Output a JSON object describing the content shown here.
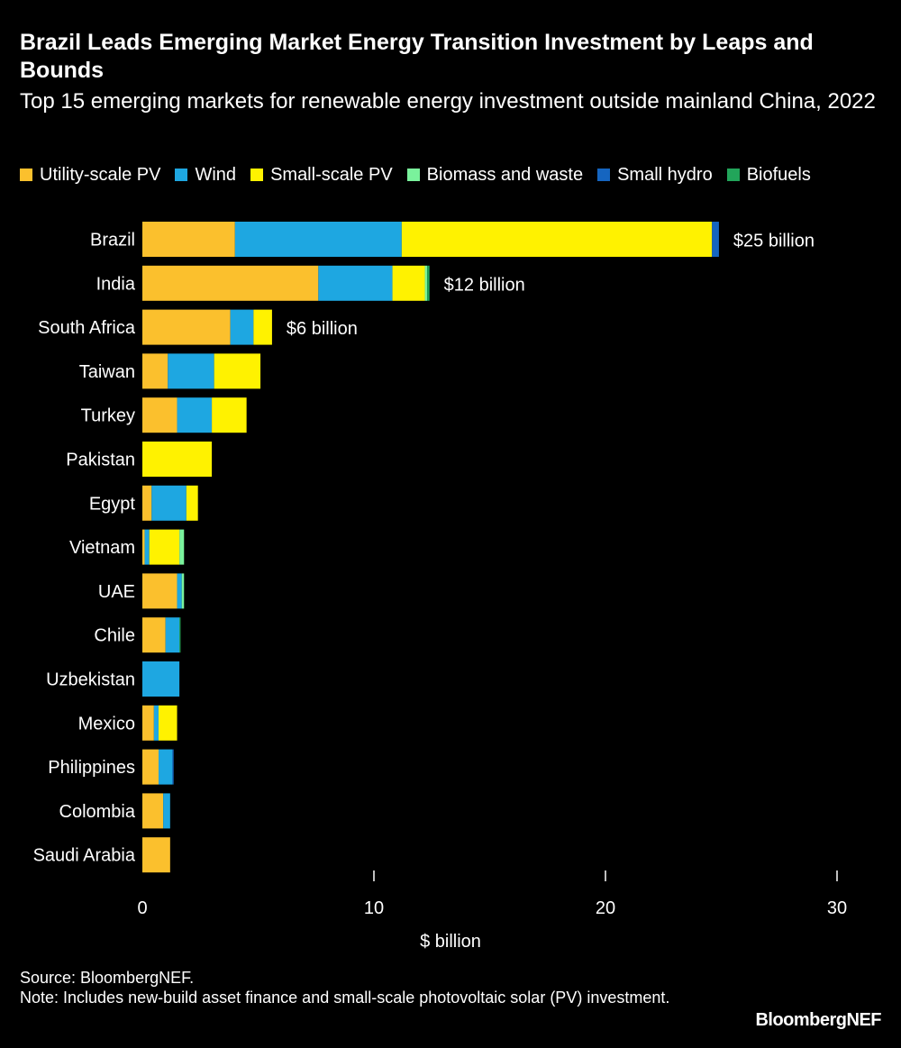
{
  "header": {
    "title": "Brazil Leads Emerging Market Energy Transition Investment by Leaps and Bounds",
    "subtitle": "Top 15 emerging markets for renewable energy investment outside mainland China, 2022"
  },
  "legend": [
    {
      "name": "Utility-scale PV",
      "color": "#fbc02d"
    },
    {
      "name": "Wind",
      "color": "#1ea7e1"
    },
    {
      "name": "Small-scale PV",
      "color": "#fff200"
    },
    {
      "name": "Biomass and waste",
      "color": "#7af29c"
    },
    {
      "name": "Small hydro",
      "color": "#1565c0"
    },
    {
      "name": "Biofuels",
      "color": "#22a55a"
    }
  ],
  "chart_data": {
    "type": "bar",
    "orientation": "horizontal",
    "stacked": true,
    "title": "Brazil Leads Emerging Market Energy Transition Investment by Leaps and Bounds",
    "subtitle": "Top 15 emerging markets for renewable energy investment outside mainland China, 2022",
    "xlabel": "$ billion",
    "ylabel": "",
    "xlim": [
      0,
      30
    ],
    "xticks": [
      0,
      10,
      20,
      30
    ],
    "grid": false,
    "legend_position": "top",
    "categories": [
      "Brazil",
      "India",
      "South Africa",
      "Taiwan",
      "Turkey",
      "Pakistan",
      "Egypt",
      "Vietnam",
      "UAE",
      "Chile",
      "Uzbekistan",
      "Mexico",
      "Philippines",
      "Colombia",
      "Saudi Arabia"
    ],
    "series": [
      {
        "name": "Utility-scale PV",
        "color": "#fbc02d",
        "values": [
          4.0,
          7.6,
          3.8,
          1.1,
          1.5,
          0.0,
          0.4,
          0.1,
          1.5,
          1.0,
          0.0,
          0.5,
          0.7,
          0.9,
          1.2
        ]
      },
      {
        "name": "Wind",
        "color": "#1ea7e1",
        "values": [
          7.2,
          3.2,
          1.0,
          2.0,
          1.5,
          0.0,
          1.5,
          0.2,
          0.2,
          0.6,
          1.6,
          0.2,
          0.6,
          0.3,
          0.0
        ]
      },
      {
        "name": "Small-scale PV",
        "color": "#fff200",
        "values": [
          13.4,
          1.4,
          0.8,
          2.0,
          1.5,
          3.0,
          0.5,
          1.3,
          0.0,
          0.0,
          0.0,
          0.8,
          0.0,
          0.0,
          0.0
        ]
      },
      {
        "name": "Biomass and waste",
        "color": "#7af29c",
        "values": [
          0.0,
          0.1,
          0.0,
          0.0,
          0.0,
          0.0,
          0.0,
          0.2,
          0.1,
          0.0,
          0.0,
          0.0,
          0.0,
          0.0,
          0.0
        ]
      },
      {
        "name": "Small hydro",
        "color": "#1565c0",
        "values": [
          0.3,
          0.0,
          0.0,
          0.0,
          0.0,
          0.0,
          0.0,
          0.0,
          0.0,
          0.0,
          0.0,
          0.0,
          0.05,
          0.0,
          0.0
        ]
      },
      {
        "name": "Biofuels",
        "color": "#22a55a",
        "values": [
          0.0,
          0.1,
          0.0,
          0.0,
          0.0,
          0.0,
          0.0,
          0.0,
          0.0,
          0.05,
          0.0,
          0.0,
          0.0,
          0.0,
          0.0
        ]
      }
    ],
    "annotations": [
      {
        "category": "Brazil",
        "text": "$25 billion"
      },
      {
        "category": "India",
        "text": "$12 billion"
      },
      {
        "category": "South Africa",
        "text": "$6 billion"
      }
    ]
  },
  "footer": {
    "source": "Source: BloombergNEF.",
    "note": "Note: Includes new-build asset finance and small-scale photovoltaic solar (PV) investment.",
    "brand": "BloombergNEF"
  }
}
